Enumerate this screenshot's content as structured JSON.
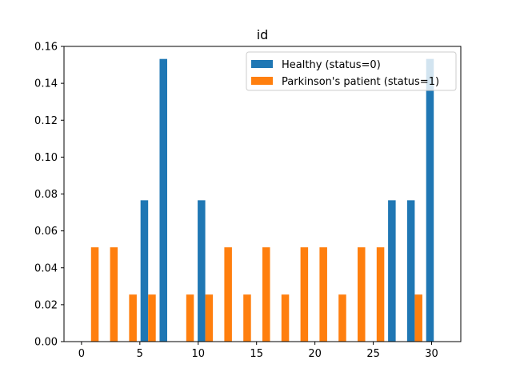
{
  "chart_data": {
    "type": "bar",
    "title": "id",
    "xlabel": "",
    "ylabel": "",
    "xlim": [
      -1.5,
      32.5
    ],
    "ylim": [
      0,
      0.16
    ],
    "xticks": [
      0,
      5,
      10,
      15,
      20,
      25,
      30
    ],
    "xtick_labels": [
      "0",
      "5",
      "10",
      "15",
      "20",
      "25",
      "30"
    ],
    "yticks": [
      0,
      0.02,
      0.04,
      0.06,
      0.08,
      0.1,
      0.12,
      0.14,
      0.16
    ],
    "ytick_labels": [
      "0.00",
      "0.02",
      "0.04",
      "0.06",
      "0.08",
      "0.10",
      "0.12",
      "0.14",
      "0.16"
    ],
    "bin_edges": [
      0.0,
      1.6316,
      3.2632,
      4.8947,
      6.5263,
      8.1579,
      9.7895,
      11.4211,
      13.0526,
      14.6842,
      16.3158,
      17.9474,
      19.5789,
      21.2105,
      22.8421,
      24.4737,
      26.1053,
      27.7368,
      29.3684,
      31.0
    ],
    "grid": false,
    "legend_position": "upper right",
    "series": [
      {
        "name": "Healthy (status=0)",
        "color": "#1f77b4",
        "values": [
          0,
          0,
          0,
          0.0766,
          0.1532,
          0,
          0.0766,
          0,
          0,
          0,
          0,
          0,
          0,
          0,
          0,
          0,
          0.0766,
          0.0766,
          0.1532
        ]
      },
      {
        "name": "Parkinson's patient (status=1)",
        "color": "#ff7f0e",
        "values": [
          0.0511,
          0.0511,
          0.0255,
          0.0255,
          0,
          0.0255,
          0.0255,
          0.0511,
          0.0255,
          0.0511,
          0.0255,
          0.0511,
          0.0511,
          0.0255,
          0.0511,
          0.0511,
          0,
          0.0255,
          0
        ]
      }
    ]
  }
}
